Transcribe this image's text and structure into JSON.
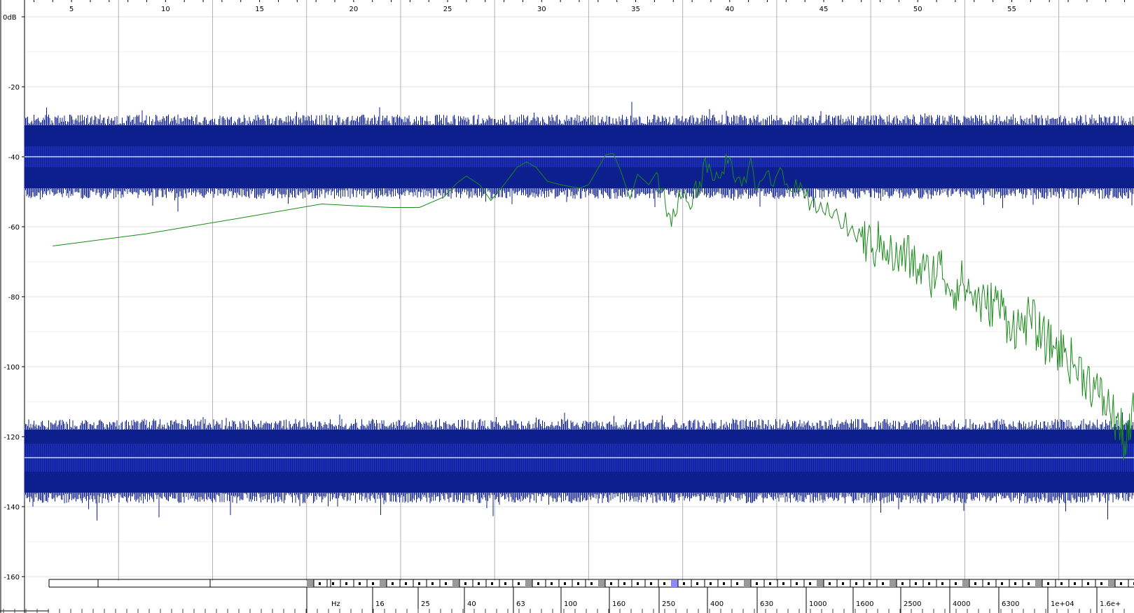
{
  "chart_data": {
    "type": "line",
    "title": "",
    "xlabel": "",
    "ylabel": "",
    "y_unit_label": "0dB",
    "ylim": [
      -166,
      4
    ],
    "y_ticks": [
      -20,
      -40,
      -60,
      -80,
      -100,
      -120,
      -140,
      -160
    ],
    "x_seconds_range": [
      2.5,
      61.5
    ],
    "x_seconds_ticks": [
      5,
      10,
      15,
      20,
      25,
      30,
      35,
      40,
      45,
      50,
      55
    ],
    "grid": true,
    "background_waveforms": [
      {
        "name": "waveform-upper",
        "center_db": -40,
        "outer_envelope_db": [
          -33,
          -47
        ],
        "inner_band_db": [
          -37,
          -43
        ],
        "spike_db": [
          -28,
          -51
        ],
        "color": "#0d1f8c",
        "inner_color": "#2b3fe0",
        "centerline_color": "#c8d2ff"
      },
      {
        "name": "waveform-lower",
        "center_db": -126,
        "outer_envelope_db": [
          -120,
          -134
        ],
        "inner_band_db": [
          -122,
          -130
        ],
        "spike_db": [
          -117,
          -140
        ],
        "color": "#0d1f8c",
        "inner_color": "#2b3fe0",
        "centerline_color": "#c8d2ff"
      }
    ],
    "series": [
      {
        "color": "#1a8a1a",
        "points": [
          [
            4,
            -65.5
          ],
          [
            9,
            -62
          ],
          [
            14,
            -57.5
          ],
          [
            18.3,
            -53.5
          ],
          [
            20,
            -54
          ],
          [
            22,
            -54.5
          ],
          [
            23.5,
            -54.5
          ],
          [
            24.8,
            -51.5
          ],
          [
            25.5,
            -47.5
          ],
          [
            26,
            -45.5
          ],
          [
            26.7,
            -48
          ],
          [
            27.3,
            -52.5
          ],
          [
            28,
            -48
          ],
          [
            28.7,
            -43
          ],
          [
            29.2,
            -41.5
          ],
          [
            29.7,
            -43
          ],
          [
            30.3,
            -47
          ],
          [
            31,
            -48
          ],
          [
            32,
            -49
          ],
          [
            32.5,
            -48
          ],
          [
            33.4,
            -39.5
          ],
          [
            33.8,
            -39
          ],
          [
            34.2,
            -44
          ],
          [
            34.7,
            -52
          ],
          [
            35.1,
            -45
          ],
          [
            35.7,
            -48
          ],
          [
            36.1,
            -44.5
          ],
          [
            36.5,
            -49
          ],
          [
            36.9,
            -60
          ],
          [
            37.4,
            -52
          ],
          [
            37.9,
            -55
          ],
          [
            38.4,
            -47
          ],
          [
            38.9,
            -42
          ],
          [
            39.4,
            -46
          ],
          [
            39.9,
            -42
          ],
          [
            40.4,
            -46
          ],
          [
            41,
            -43
          ],
          [
            41.6,
            -47
          ],
          [
            42.2,
            -48
          ],
          [
            42.8,
            -44
          ],
          [
            43.4,
            -50
          ],
          [
            44,
            -52
          ],
          [
            44.6,
            -56
          ],
          [
            45.2,
            -53
          ],
          [
            45.8,
            -58
          ],
          [
            46.4,
            -61
          ],
          [
            47,
            -63
          ],
          [
            47.6,
            -66
          ],
          [
            48.2,
            -64
          ],
          [
            48.8,
            -70
          ],
          [
            49.4,
            -68
          ],
          [
            50,
            -72
          ],
          [
            50.6,
            -74
          ],
          [
            51.2,
            -71
          ],
          [
            51.8,
            -78
          ],
          [
            52.4,
            -76
          ],
          [
            53,
            -80
          ],
          [
            53.6,
            -83
          ],
          [
            54.2,
            -81
          ],
          [
            54.8,
            -87
          ],
          [
            55.4,
            -89
          ],
          [
            56,
            -86
          ],
          [
            56.6,
            -92
          ],
          [
            57.2,
            -94
          ],
          [
            57.8,
            -96
          ],
          [
            58.4,
            -100
          ],
          [
            59,
            -103
          ],
          [
            59.6,
            -108
          ],
          [
            60.2,
            -112
          ],
          [
            60.7,
            -117
          ],
          [
            61.1,
            -123
          ],
          [
            61.5,
            -113
          ]
        ]
      }
    ],
    "hz_scale": {
      "unit_label": "Hz",
      "labels": [
        "16",
        "25",
        "40",
        "63",
        "100",
        "160",
        "250",
        "400",
        "630",
        "1000",
        "1600",
        "2500",
        "4000",
        "6300",
        "1e+04",
        "1.6e+"
      ],
      "highlight_label": "250",
      "highlight_color": "#8a8aff"
    }
  }
}
